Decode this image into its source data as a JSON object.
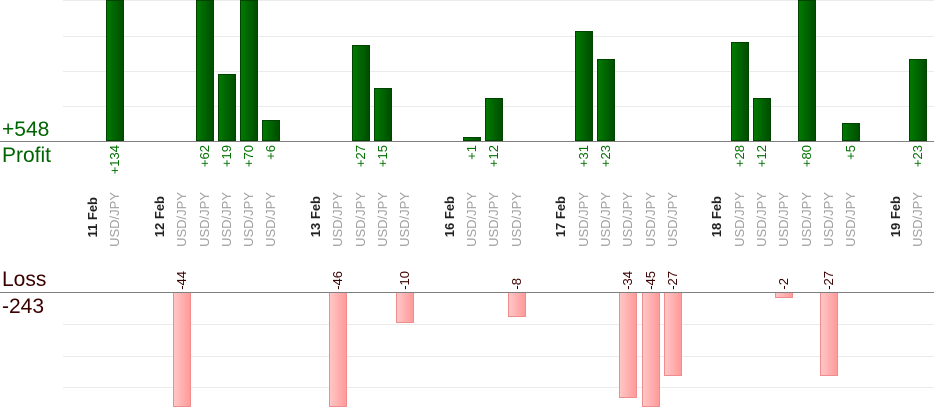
{
  "summary": {
    "profit_total": "+548",
    "profit_label": "Profit",
    "loss_label": "Loss",
    "loss_total": "-243"
  },
  "colors": {
    "profit": "#006400",
    "loss": "#ffaaaa"
  },
  "chart_data": {
    "type": "bar",
    "title": "",
    "profit_axis": {
      "max_visible": 40,
      "grid_step": 10
    },
    "loss_axis": {
      "max_visible": 37,
      "grid_step": 10
    },
    "days": [
      {
        "date": "11 Feb",
        "trades": [
          {
            "pair": "USD/JPY",
            "value": 134,
            "label": "+134"
          }
        ]
      },
      {
        "date": "12 Feb",
        "trades": [
          {
            "pair": "USD/JPY",
            "value": -44,
            "label": "-44"
          },
          {
            "pair": "USD/JPY",
            "value": 62,
            "label": "+62"
          },
          {
            "pair": "USD/JPY",
            "value": 19,
            "label": "+19"
          },
          {
            "pair": "USD/JPY",
            "value": 70,
            "label": "+70"
          },
          {
            "pair": "USD/JPY",
            "value": 6,
            "label": "+6"
          }
        ]
      },
      {
        "date": "13 Feb",
        "trades": [
          {
            "pair": "USD/JPY",
            "value": -46,
            "label": "-46"
          },
          {
            "pair": "USD/JPY",
            "value": 27,
            "label": "+27"
          },
          {
            "pair": "USD/JPY",
            "value": 15,
            "label": "+15"
          },
          {
            "pair": "USD/JPY",
            "value": -10,
            "label": "-10"
          }
        ]
      },
      {
        "date": "16 Feb",
        "trades": [
          {
            "pair": "USD/JPY",
            "value": 1,
            "label": "+1"
          },
          {
            "pair": "USD/JPY",
            "value": 12,
            "label": "+12"
          },
          {
            "pair": "USD/JPY",
            "value": -8,
            "label": "-8"
          }
        ]
      },
      {
        "date": "17 Feb",
        "trades": [
          {
            "pair": "USD/JPY",
            "value": 31,
            "label": "+31"
          },
          {
            "pair": "USD/JPY",
            "value": 23,
            "label": "+23"
          },
          {
            "pair": "USD/JPY",
            "value": -34,
            "label": "-34"
          },
          {
            "pair": "USD/JPY",
            "value": -45,
            "label": "-45"
          },
          {
            "pair": "USD/JPY",
            "value": -27,
            "label": "-27"
          }
        ]
      },
      {
        "date": "18 Feb",
        "trades": [
          {
            "pair": "USD/JPY",
            "value": 28,
            "label": "+28"
          },
          {
            "pair": "USD/JPY",
            "value": 12,
            "label": "+12"
          },
          {
            "pair": "USD/JPY",
            "value": -2,
            "label": "-2"
          },
          {
            "pair": "USD/JPY",
            "value": 80,
            "label": "+80"
          },
          {
            "pair": "USD/JPY",
            "value": -27,
            "label": "-27"
          },
          {
            "pair": "USD/JPY",
            "value": 5,
            "label": "+5"
          }
        ]
      },
      {
        "date": "19 Feb",
        "trades": [
          {
            "pair": "USD/JPY",
            "value": 23,
            "label": "+23"
          }
        ]
      }
    ]
  }
}
